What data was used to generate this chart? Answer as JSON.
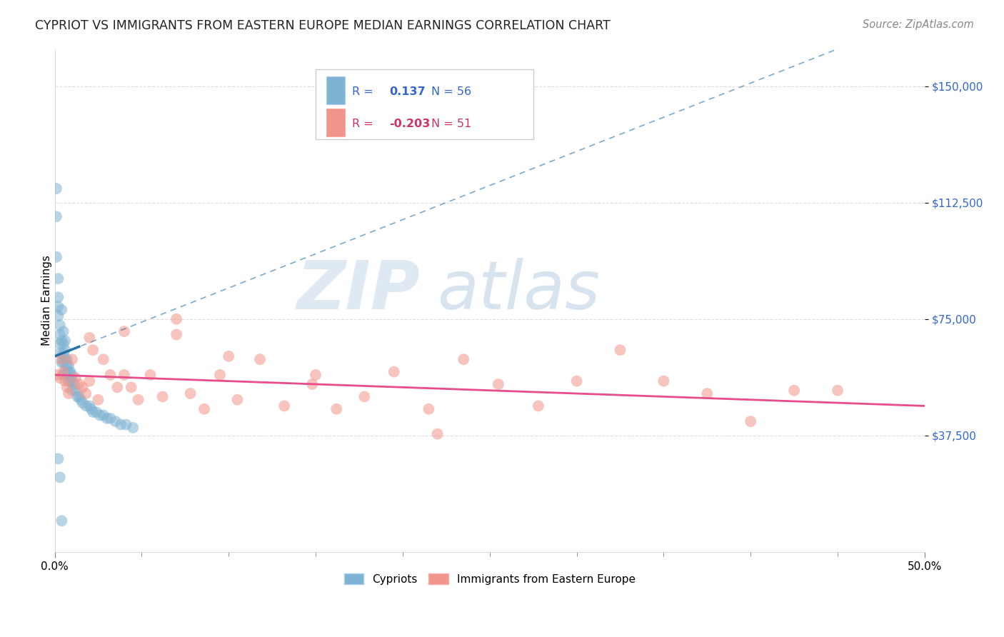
{
  "title": "CYPRIOT VS IMMIGRANTS FROM EASTERN EUROPE MEDIAN EARNINGS CORRELATION CHART",
  "source": "Source: ZipAtlas.com",
  "ylabel": "Median Earnings",
  "xlim": [
    0.0,
    0.5
  ],
  "ylim": [
    0,
    162000
  ],
  "yticks": [
    37500,
    75000,
    112500,
    150000
  ],
  "ytick_labels": [
    "$37,500",
    "$75,000",
    "$112,500",
    "$150,000"
  ],
  "xtick_major": [
    0.0,
    0.5
  ],
  "xtick_major_labels": [
    "0.0%",
    "50.0%"
  ],
  "xtick_minor": [
    0.05,
    0.1,
    0.15,
    0.2,
    0.25,
    0.3,
    0.35,
    0.4,
    0.45
  ],
  "legend_r_blue": "0.137",
  "legend_n_blue": "56",
  "legend_r_pink": "-0.203",
  "legend_n_pink": "51",
  "blue_color": "#7FB3D3",
  "pink_color": "#F1948A",
  "blue_line_color": "#2471A3",
  "pink_line_color": "#E74C8B",
  "watermark_zip": "ZIP",
  "watermark_atlas": "atlas",
  "watermark_color_zip": "#BDD7EE",
  "watermark_color_atlas": "#9FC5E8",
  "background_color": "#FFFFFF",
  "grid_color": "#DDDDDD",
  "blue_x": [
    0.001,
    0.001,
    0.001,
    0.002,
    0.002,
    0.002,
    0.002,
    0.003,
    0.003,
    0.003,
    0.003,
    0.004,
    0.004,
    0.004,
    0.005,
    0.005,
    0.005,
    0.005,
    0.005,
    0.006,
    0.006,
    0.006,
    0.006,
    0.007,
    0.007,
    0.007,
    0.008,
    0.008,
    0.008,
    0.009,
    0.009,
    0.01,
    0.01,
    0.01,
    0.011,
    0.012,
    0.013,
    0.014,
    0.015,
    0.016,
    0.018,
    0.02,
    0.021,
    0.022,
    0.024,
    0.026,
    0.028,
    0.03,
    0.032,
    0.035,
    0.038,
    0.041,
    0.045,
    0.002,
    0.003,
    0.004
  ],
  "blue_y": [
    117000,
    108000,
    95000,
    88000,
    82000,
    79000,
    76000,
    73000,
    70000,
    67000,
    64000,
    78000,
    68000,
    61000,
    71000,
    67000,
    64000,
    61000,
    57000,
    68000,
    65000,
    62000,
    58000,
    62000,
    60000,
    57000,
    60000,
    58000,
    55000,
    58000,
    55000,
    57000,
    55000,
    52000,
    54000,
    52000,
    50000,
    50000,
    49000,
    48000,
    47000,
    47000,
    46000,
    45000,
    45000,
    44000,
    44000,
    43000,
    43000,
    42000,
    41000,
    41000,
    40000,
    30000,
    24000,
    10000
  ],
  "pink_x": [
    0.001,
    0.003,
    0.004,
    0.005,
    0.006,
    0.007,
    0.008,
    0.01,
    0.012,
    0.014,
    0.016,
    0.018,
    0.02,
    0.022,
    0.025,
    0.028,
    0.032,
    0.036,
    0.04,
    0.044,
    0.048,
    0.055,
    0.062,
    0.07,
    0.078,
    0.086,
    0.095,
    0.105,
    0.118,
    0.132,
    0.148,
    0.162,
    0.178,
    0.195,
    0.215,
    0.235,
    0.255,
    0.278,
    0.3,
    0.325,
    0.35,
    0.375,
    0.4,
    0.425,
    0.45,
    0.02,
    0.04,
    0.07,
    0.1,
    0.15,
    0.22
  ],
  "pink_y": [
    57000,
    56000,
    62000,
    58000,
    55000,
    53000,
    51000,
    62000,
    56000,
    54000,
    53000,
    51000,
    55000,
    65000,
    49000,
    62000,
    57000,
    53000,
    57000,
    53000,
    49000,
    57000,
    50000,
    75000,
    51000,
    46000,
    57000,
    49000,
    62000,
    47000,
    54000,
    46000,
    50000,
    58000,
    46000,
    62000,
    54000,
    47000,
    55000,
    65000,
    55000,
    51000,
    42000,
    52000,
    52000,
    69000,
    71000,
    70000,
    63000,
    57000,
    38000
  ]
}
